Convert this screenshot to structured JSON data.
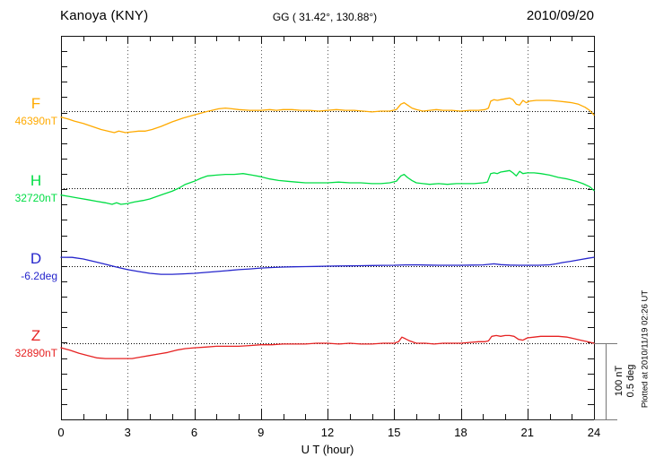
{
  "header": {
    "station": "Kanoya (KNY)",
    "coords": "GG ( 31.42°, 130.88°)",
    "date": "2010/09/20"
  },
  "xaxis": {
    "label": "U T (hour)",
    "ticks": [
      0,
      3,
      6,
      9,
      12,
      15,
      18,
      21,
      24
    ],
    "range": [
      0,
      24
    ]
  },
  "yaxis": {
    "minor_tick_nT": 20,
    "scale_bar_nT": 100,
    "scale_bar_deg": 0.5
  },
  "scale_bar": {
    "labels": [
      "100 nT",
      "0.5 deg"
    ]
  },
  "footer_note": "Plotted at 2010/11/19 02:26 UT",
  "chart_data": {
    "type": "line",
    "title": "Kanoya (KNY) magnetogram 2010/09/20",
    "xlabel": "U T (hour)",
    "x_range": [
      0,
      24
    ],
    "grid": "dotted vertical lines every 3 h; dotted horizontal baseline per trace",
    "legend_position": "left margin trace labels",
    "series": [
      {
        "name": "F",
        "unit": "nT",
        "baseline_value": 46390,
        "baseline_label": "46390nT",
        "color": "#FFAA00",
        "points": [
          [
            0,
            46382
          ],
          [
            0.3,
            46380
          ],
          [
            0.6,
            46377
          ],
          [
            1,
            46374
          ],
          [
            1.4,
            46370
          ],
          [
            1.8,
            46366
          ],
          [
            2.1,
            46364
          ],
          [
            2.4,
            46362
          ],
          [
            2.6,
            46364
          ],
          [
            2.9,
            46362
          ],
          [
            3.2,
            46363
          ],
          [
            3.5,
            46364
          ],
          [
            3.8,
            46364
          ],
          [
            4.1,
            46366
          ],
          [
            4.5,
            46370
          ],
          [
            5,
            46376
          ],
          [
            5.5,
            46381
          ],
          [
            6,
            46385
          ],
          [
            6.5,
            46389
          ],
          [
            6.8,
            46391
          ],
          [
            7.1,
            46393
          ],
          [
            7.4,
            46394
          ],
          [
            7.7,
            46393
          ],
          [
            8,
            46392
          ],
          [
            8.5,
            46391
          ],
          [
            9,
            46391
          ],
          [
            9.4,
            46392
          ],
          [
            9.7,
            46391
          ],
          [
            10,
            46392
          ],
          [
            10.4,
            46392
          ],
          [
            10.8,
            46391
          ],
          [
            11.2,
            46391
          ],
          [
            11.6,
            46390
          ],
          [
            12,
            46391
          ],
          [
            12.4,
            46392
          ],
          [
            12.8,
            46391
          ],
          [
            13.2,
            46391
          ],
          [
            13.6,
            46390
          ],
          [
            14,
            46389
          ],
          [
            14.4,
            46390
          ],
          [
            14.8,
            46390
          ],
          [
            15.1,
            46392
          ],
          [
            15.3,
            46399
          ],
          [
            15.45,
            46401
          ],
          [
            15.6,
            46398
          ],
          [
            15.8,
            46394
          ],
          [
            16,
            46392
          ],
          [
            16.3,
            46390
          ],
          [
            16.6,
            46391
          ],
          [
            16.9,
            46392
          ],
          [
            17.2,
            46391
          ],
          [
            17.6,
            46391
          ],
          [
            18,
            46390
          ],
          [
            18.4,
            46391
          ],
          [
            18.8,
            46391
          ],
          [
            19.1,
            46392
          ],
          [
            19.25,
            46394
          ],
          [
            19.35,
            46403
          ],
          [
            19.5,
            46405
          ],
          [
            19.65,
            46404
          ],
          [
            19.8,
            46405
          ],
          [
            20,
            46406
          ],
          [
            20.2,
            46407
          ],
          [
            20.35,
            46405
          ],
          [
            20.5,
            46399
          ],
          [
            20.65,
            46398
          ],
          [
            20.8,
            46404
          ],
          [
            20.95,
            46401
          ],
          [
            21.1,
            46403
          ],
          [
            21.4,
            46404
          ],
          [
            21.7,
            46404
          ],
          [
            22,
            46404
          ],
          [
            22.4,
            46403
          ],
          [
            22.7,
            46402
          ],
          [
            23,
            46401
          ],
          [
            23.3,
            46399
          ],
          [
            23.6,
            46395
          ],
          [
            23.8,
            46391
          ],
          [
            24,
            46385
          ]
        ]
      },
      {
        "name": "H",
        "unit": "nT",
        "baseline_value": 32720,
        "baseline_label": "32720nT",
        "color": "#00DD44",
        "points": [
          [
            0,
            32711
          ],
          [
            0.4,
            32709
          ],
          [
            0.8,
            32707
          ],
          [
            1.2,
            32705
          ],
          [
            1.6,
            32703
          ],
          [
            2,
            32701
          ],
          [
            2.3,
            32699
          ],
          [
            2.5,
            32701
          ],
          [
            2.7,
            32699
          ],
          [
            3,
            32700
          ],
          [
            3.3,
            32702
          ],
          [
            3.7,
            32704
          ],
          [
            4,
            32706
          ],
          [
            4.3,
            32709
          ],
          [
            4.6,
            32712
          ],
          [
            5,
            32716
          ],
          [
            5.3,
            32720
          ],
          [
            5.6,
            32725
          ],
          [
            6,
            32729
          ],
          [
            6.3,
            32733
          ],
          [
            6.6,
            32736
          ],
          [
            7,
            32737
          ],
          [
            7.4,
            32738
          ],
          [
            7.8,
            32738
          ],
          [
            8.2,
            32739
          ],
          [
            8.6,
            32737
          ],
          [
            9,
            32735
          ],
          [
            9.4,
            32732
          ],
          [
            9.8,
            32730
          ],
          [
            10.2,
            32729
          ],
          [
            10.6,
            32728
          ],
          [
            11,
            32727
          ],
          [
            11.5,
            32727
          ],
          [
            12,
            32727
          ],
          [
            12.5,
            32728
          ],
          [
            13,
            32727
          ],
          [
            13.5,
            32727
          ],
          [
            14,
            32726
          ],
          [
            14.4,
            32726
          ],
          [
            14.8,
            32727
          ],
          [
            15.1,
            32729
          ],
          [
            15.3,
            32736
          ],
          [
            15.45,
            32738
          ],
          [
            15.6,
            32734
          ],
          [
            15.8,
            32730
          ],
          [
            16,
            32727
          ],
          [
            16.3,
            32726
          ],
          [
            16.6,
            32725
          ],
          [
            17,
            32726
          ],
          [
            17.4,
            32725
          ],
          [
            17.8,
            32726
          ],
          [
            18.2,
            32726
          ],
          [
            18.6,
            32726
          ],
          [
            19,
            32727
          ],
          [
            19.2,
            32728
          ],
          [
            19.35,
            32739
          ],
          [
            19.5,
            32740
          ],
          [
            19.65,
            32739
          ],
          [
            19.8,
            32741
          ],
          [
            20,
            32742
          ],
          [
            20.2,
            32743
          ],
          [
            20.35,
            32740
          ],
          [
            20.5,
            32736
          ],
          [
            20.65,
            32742
          ],
          [
            20.8,
            32739
          ],
          [
            21,
            32740
          ],
          [
            21.3,
            32740
          ],
          [
            21.6,
            32739
          ],
          [
            22,
            32737
          ],
          [
            22.4,
            32734
          ],
          [
            22.8,
            32732
          ],
          [
            23.2,
            32729
          ],
          [
            23.5,
            32726
          ],
          [
            23.8,
            32722
          ],
          [
            24,
            32717
          ]
        ]
      },
      {
        "name": "D",
        "unit": "deg",
        "baseline_value": -6.2,
        "baseline_label": "-6.2deg",
        "color": "#2525CC",
        "points": [
          [
            0,
            -6.142
          ],
          [
            0.5,
            -6.143
          ],
          [
            1,
            -6.153
          ],
          [
            1.5,
            -6.17
          ],
          [
            2,
            -6.188
          ],
          [
            2.5,
            -6.206
          ],
          [
            3,
            -6.223
          ],
          [
            3.5,
            -6.235
          ],
          [
            4,
            -6.247
          ],
          [
            4.5,
            -6.253
          ],
          [
            5,
            -6.253
          ],
          [
            5.5,
            -6.25
          ],
          [
            6,
            -6.247
          ],
          [
            6.5,
            -6.241
          ],
          [
            7,
            -6.235
          ],
          [
            7.5,
            -6.229
          ],
          [
            8,
            -6.223
          ],
          [
            8.5,
            -6.218
          ],
          [
            9,
            -6.212
          ],
          [
            9.5,
            -6.209
          ],
          [
            10,
            -6.206
          ],
          [
            10.5,
            -6.204
          ],
          [
            11,
            -6.203
          ],
          [
            11.5,
            -6.202
          ],
          [
            12,
            -6.2
          ],
          [
            12.5,
            -6.199
          ],
          [
            13,
            -6.198
          ],
          [
            13.5,
            -6.197
          ],
          [
            14,
            -6.196
          ],
          [
            14.5,
            -6.195
          ],
          [
            15,
            -6.194
          ],
          [
            15.5,
            -6.192
          ],
          [
            16,
            -6.191
          ],
          [
            16.5,
            -6.193
          ],
          [
            17,
            -6.194
          ],
          [
            17.5,
            -6.194
          ],
          [
            18,
            -6.194
          ],
          [
            18.5,
            -6.193
          ],
          [
            19,
            -6.192
          ],
          [
            19.5,
            -6.185
          ],
          [
            19.8,
            -6.19
          ],
          [
            20.2,
            -6.193
          ],
          [
            20.6,
            -6.194
          ],
          [
            21,
            -6.194
          ],
          [
            21.5,
            -6.194
          ],
          [
            22,
            -6.191
          ],
          [
            22.3,
            -6.185
          ],
          [
            22.6,
            -6.176
          ],
          [
            23,
            -6.167
          ],
          [
            23.4,
            -6.157
          ],
          [
            23.7,
            -6.149
          ],
          [
            24,
            -6.142
          ]
        ]
      },
      {
        "name": "Z",
        "unit": "nT",
        "baseline_value": 32890,
        "baseline_label": "32890nT",
        "color": "#E62222",
        "points": [
          [
            0,
            32884
          ],
          [
            0.4,
            32881
          ],
          [
            0.8,
            32877
          ],
          [
            1.2,
            32874
          ],
          [
            1.6,
            32871
          ],
          [
            2,
            32870
          ],
          [
            2.4,
            32870
          ],
          [
            2.8,
            32870
          ],
          [
            3.2,
            32870
          ],
          [
            3.6,
            32872
          ],
          [
            4,
            32874
          ],
          [
            4.4,
            32876
          ],
          [
            4.8,
            32878
          ],
          [
            5.2,
            32881
          ],
          [
            5.6,
            32883
          ],
          [
            6,
            32884
          ],
          [
            6.5,
            32885
          ],
          [
            7,
            32886
          ],
          [
            7.5,
            32886
          ],
          [
            8,
            32886
          ],
          [
            8.5,
            32887
          ],
          [
            9,
            32888
          ],
          [
            9.5,
            32888
          ],
          [
            10,
            32889
          ],
          [
            10.5,
            32889
          ],
          [
            11,
            32889
          ],
          [
            11.5,
            32890
          ],
          [
            12,
            32890
          ],
          [
            12.5,
            32889
          ],
          [
            13,
            32890
          ],
          [
            13.5,
            32889
          ],
          [
            14,
            32889
          ],
          [
            14.5,
            32890
          ],
          [
            15,
            32890
          ],
          [
            15.2,
            32892
          ],
          [
            15.35,
            32898
          ],
          [
            15.5,
            32896
          ],
          [
            15.7,
            32893
          ],
          [
            16,
            32890
          ],
          [
            16.4,
            32890
          ],
          [
            16.8,
            32889
          ],
          [
            17.2,
            32890
          ],
          [
            17.6,
            32890
          ],
          [
            18,
            32890
          ],
          [
            18.4,
            32891
          ],
          [
            18.8,
            32892
          ],
          [
            19.1,
            32892
          ],
          [
            19.25,
            32893
          ],
          [
            19.4,
            32899
          ],
          [
            19.6,
            32900
          ],
          [
            19.8,
            32899
          ],
          [
            20,
            32900
          ],
          [
            20.2,
            32900
          ],
          [
            20.4,
            32899
          ],
          [
            20.6,
            32895
          ],
          [
            20.8,
            32894
          ],
          [
            21,
            32897
          ],
          [
            21.3,
            32898
          ],
          [
            21.6,
            32899
          ],
          [
            22,
            32899
          ],
          [
            22.4,
            32899
          ],
          [
            22.8,
            32898
          ],
          [
            23.1,
            32896
          ],
          [
            23.4,
            32894
          ],
          [
            23.7,
            32892
          ],
          [
            24,
            32890
          ]
        ]
      }
    ]
  }
}
